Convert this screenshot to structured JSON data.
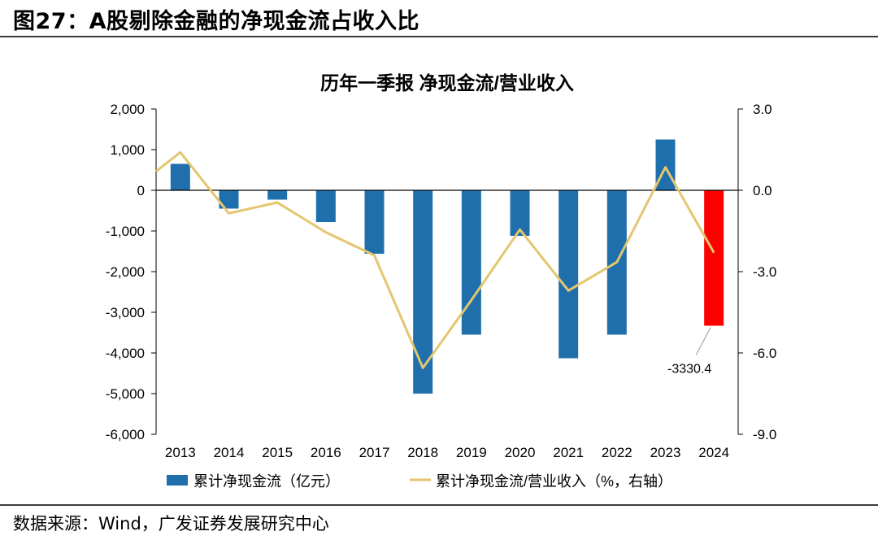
{
  "figure_title": "图27：A股剔除金融的净现金流占收入比",
  "source_note": "数据来源：Wind，广发证券发展研究中心",
  "colors": {
    "bar": "#1f6fad",
    "bar_highlight": "#ff0000",
    "line": "#e3c66e",
    "axis": "#000000"
  },
  "chart_data": {
    "type": "bar",
    "title": "历年一季报  净现金流/营业收入",
    "categories": [
      "2013",
      "2014",
      "2015",
      "2016",
      "2017",
      "2018",
      "2019",
      "2020",
      "2021",
      "2022",
      "2023",
      "2024"
    ],
    "y_left": {
      "ylim": [
        -6000,
        2000
      ],
      "ticks": [
        "2,000",
        "1,000",
        "0",
        "-1,000",
        "-2,000",
        "-3,000",
        "-4,000",
        "-5,000",
        "-6,000"
      ]
    },
    "y_right": {
      "ylim": [
        -9.0,
        3.0
      ],
      "ticks": [
        "3.0",
        "0.0",
        "-3.0",
        "-6.0",
        "-9.0"
      ]
    },
    "series": [
      {
        "name": "累计净现金流（亿元）",
        "type": "bar",
        "axis": "left",
        "values": [
          650,
          -450,
          -230,
          -780,
          -1560,
          -5000,
          -3550,
          -1120,
          -4130,
          -3550,
          1250,
          -3330.4
        ]
      },
      {
        "name": "累计净现金流/营业收入（%，右轴）",
        "type": "line",
        "axis": "right",
        "values": [
          1.4,
          -0.85,
          -0.45,
          -1.55,
          -2.4,
          -6.55,
          -4.05,
          -1.45,
          -3.7,
          -2.65,
          0.85,
          -2.3
        ]
      }
    ],
    "line_start_value": 0.7,
    "highlight_index": 11,
    "annotation": {
      "text": "-3330.4",
      "index": 11
    }
  }
}
